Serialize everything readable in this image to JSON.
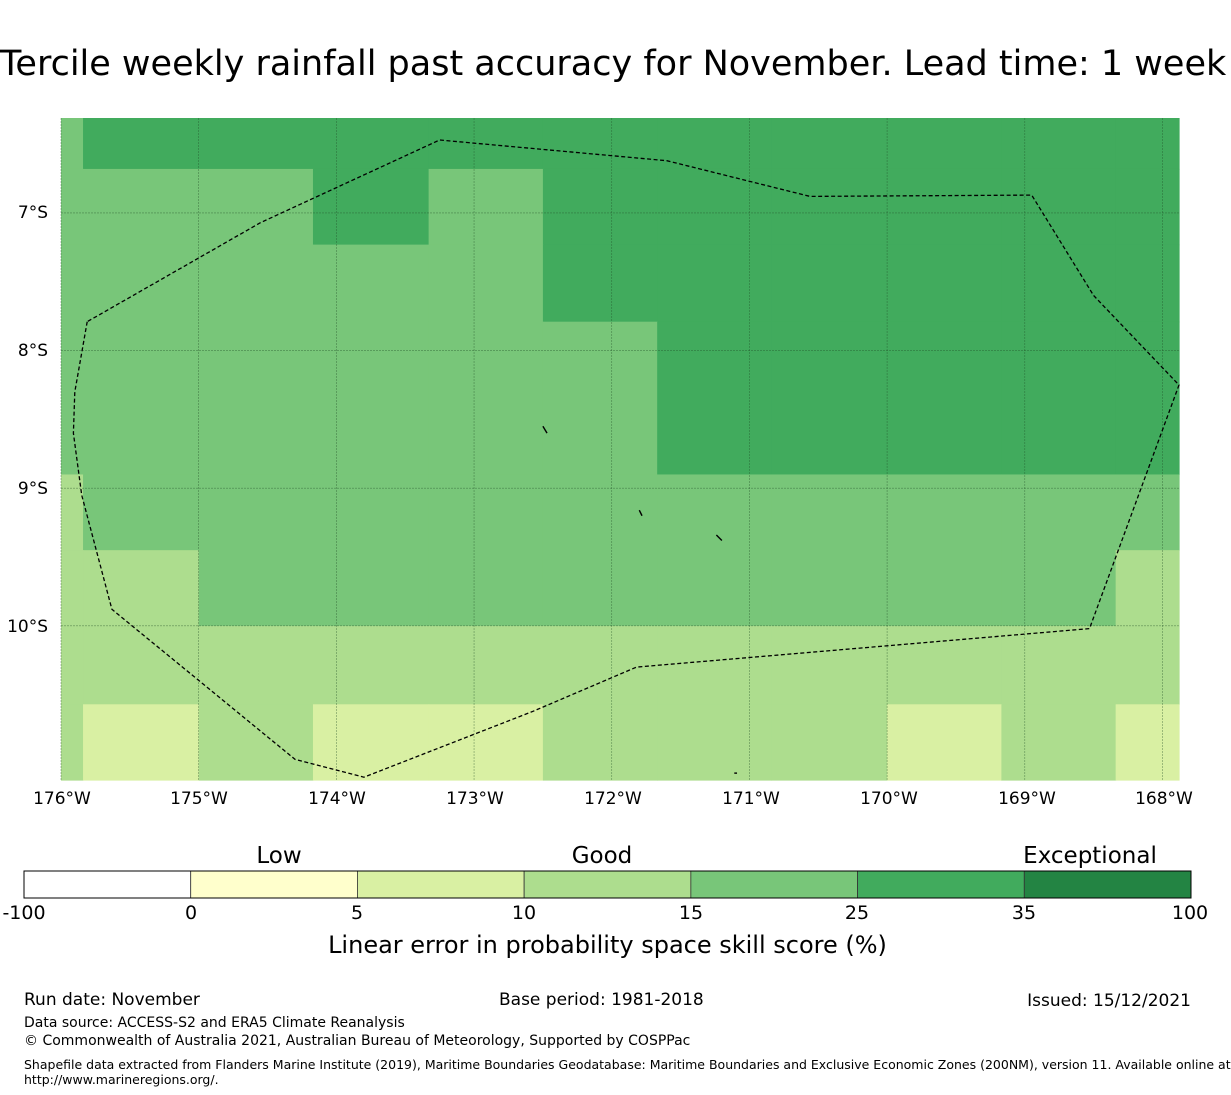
{
  "title": "Tercile weekly rainfall past accuracy for November. Lead time: 1 week",
  "map": {
    "type": "heatmap",
    "lat_labels": [
      "7°S",
      "8°S",
      "9°S",
      "10°S"
    ],
    "lat_values": [
      -7,
      -8,
      -9,
      -10
    ],
    "lon_labels": [
      "176°W",
      "175°W",
      "174°W",
      "173°W",
      "172°W",
      "171°W",
      "170°W",
      "169°W",
      "168°W"
    ],
    "lon_values": [
      -176,
      -175,
      -174,
      -173,
      -172,
      -171,
      -170,
      -169,
      -168
    ],
    "lon_range": [
      -176,
      -167.88
    ],
    "lat_range": [
      -11.12,
      -6.31
    ],
    "grid_col_edges": [
      -176,
      -175.84,
      -175,
      -174.17,
      -173.33,
      -172.5,
      -171.67,
      -170.84,
      -170,
      -169.17,
      -168.34,
      -167.88
    ],
    "grid_row_edges": [
      -6.31,
      -6.68,
      -7.23,
      -7.79,
      -8.9,
      -9.45,
      -10.0,
      -10.57,
      -11.12
    ],
    "level_colors": [
      "#ffffff",
      "#ffffcc",
      "#d9f0a3",
      "#addd8e",
      "#78c679",
      "#41ab5d",
      "#238443"
    ],
    "cells": [
      [
        4,
        5,
        5,
        5,
        5,
        5,
        5,
        5,
        5,
        5,
        5
      ],
      [
        4,
        4,
        4,
        5,
        4,
        5,
        5,
        5,
        5,
        5,
        5
      ],
      [
        4,
        4,
        4,
        4,
        4,
        5,
        5,
        5,
        5,
        5,
        5
      ],
      [
        4,
        4,
        4,
        4,
        4,
        4,
        5,
        5,
        5,
        5,
        5
      ],
      [
        3,
        4,
        4,
        4,
        4,
        4,
        4,
        4,
        4,
        4,
        4
      ],
      [
        3,
        3,
        4,
        4,
        4,
        4,
        4,
        4,
        4,
        4,
        3
      ],
      [
        3,
        3,
        3,
        3,
        3,
        3,
        3,
        3,
        3,
        3,
        3
      ],
      [
        3,
        2,
        3,
        2,
        2,
        3,
        3,
        3,
        2,
        3,
        2
      ]
    ],
    "eez_boundary": [
      [
        -175.81,
        -7.79
      ],
      [
        -175.9,
        -8.3
      ],
      [
        -175.91,
        -8.6
      ],
      [
        -175.85,
        -9.05
      ],
      [
        -175.63,
        -9.88
      ],
      [
        -174.3,
        -10.97
      ],
      [
        -173.8,
        -11.1
      ],
      [
        -172.57,
        -10.62
      ],
      [
        -171.82,
        -10.3
      ],
      [
        -168.53,
        -10.02
      ],
      [
        -167.88,
        -8.25
      ],
      [
        -168.5,
        -7.6
      ],
      [
        -168.95,
        -6.87
      ],
      [
        -170.56,
        -6.88
      ],
      [
        -171.6,
        -6.62
      ],
      [
        -173.25,
        -6.47
      ],
      [
        -174.55,
        -7.07
      ]
    ],
    "islands": [
      [
        [
          -172.5,
          -8.55
        ],
        [
          -172.47,
          -8.6
        ]
      ],
      [
        [
          -171.8,
          -9.16
        ],
        [
          -171.78,
          -9.2
        ]
      ],
      [
        [
          -171.24,
          -9.34
        ],
        [
          -171.2,
          -9.38
        ]
      ],
      [
        [
          -171.11,
          -11.07
        ],
        [
          -171.09,
          -11.07
        ]
      ]
    ]
  },
  "legend": {
    "categories": [
      "Low",
      "Good",
      "Exceptional"
    ],
    "ticks": [
      "-100",
      "0",
      "5",
      "10",
      "15",
      "25",
      "35",
      "100"
    ],
    "colors": [
      "#ffffff",
      "#ffffcc",
      "#d9f0a3",
      "#addd8e",
      "#78c679",
      "#41ab5d",
      "#238443"
    ],
    "title": "Linear error in probability space skill score (%)"
  },
  "footer": {
    "run_date": "Run date: November",
    "base_period": "Base period: 1981-2018",
    "issued": "Issued: 15/12/2021",
    "data_source": "Data source: ACCESS-S2 and ERA5 Climate Reanalysis",
    "copyright": "© Commonwealth of Australia 2021, Australian Bureau of Meteorology, Supported by COSPPac",
    "shapefile_1": "Shapefile data extracted from Flanders Marine Institute (2019), Maritime Boundaries Geodatabase: Maritime Boundaries and Exclusive Economic Zones (200NM), version 11. Available online at",
    "shapefile_2": "http://www.marineregions.org/."
  }
}
